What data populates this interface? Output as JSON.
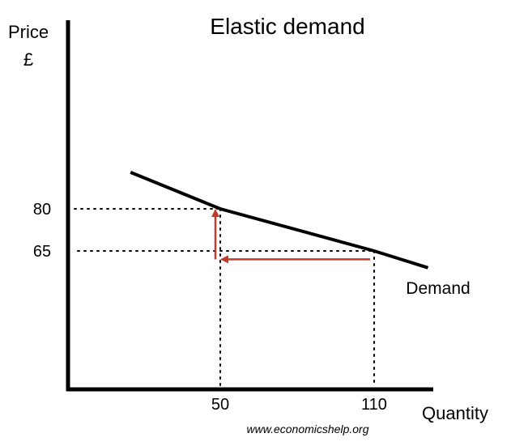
{
  "chart_data": {
    "type": "line",
    "title": "Elastic demand",
    "xlabel": "Quantity",
    "ylabel": "Price",
    "ylabel_unit": "£",
    "xlim": [
      0,
      140
    ],
    "ylim": [
      0,
      120
    ],
    "grid": false,
    "series": [
      {
        "name": "Demand",
        "color": "#000000",
        "points": [
          {
            "x": 15,
            "y": 93
          },
          {
            "x": 50,
            "y": 80
          },
          {
            "x": 110,
            "y": 65
          },
          {
            "x": 131,
            "y": 59
          }
        ]
      }
    ],
    "x_ticks": [
      "50",
      "110"
    ],
    "y_ticks": [
      "80",
      "65"
    ],
    "x_tick_values": [
      50,
      110
    ],
    "y_tick_values": [
      80,
      65
    ],
    "annotations": [
      {
        "type": "arrow",
        "from": {
          "x": 110,
          "y": 62
        },
        "to": {
          "x": 50,
          "y": 62
        },
        "color": "#c0392b"
      },
      {
        "type": "arrow",
        "from": {
          "x": 50,
          "y": 62
        },
        "to": {
          "x": 50,
          "y": 80
        },
        "color": "#c0392b"
      }
    ],
    "source": "www.economicshelp.org"
  }
}
